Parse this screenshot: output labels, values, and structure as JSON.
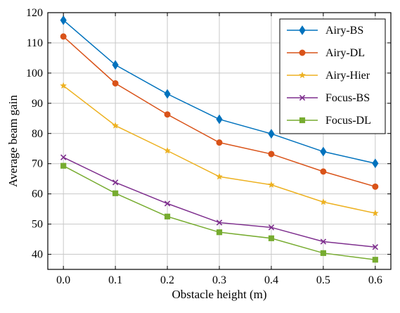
{
  "chart_data": {
    "type": "line",
    "title": "",
    "xlabel": "Obstacle height (m)",
    "ylabel": "Average beam gain",
    "x": [
      0.0,
      0.1,
      0.2,
      0.3,
      0.4,
      0.5,
      0.6
    ],
    "x_tick_labels": [
      "0.0",
      "0.1",
      "0.2",
      "0.3",
      "0.4",
      "0.5",
      "0.6"
    ],
    "xlim": [
      -0.03,
      0.63
    ],
    "ylim": [
      35,
      120
    ],
    "y_ticks": [
      40,
      50,
      60,
      70,
      80,
      90,
      100,
      110,
      120
    ],
    "y_tick_labels": [
      "40",
      "50",
      "60",
      "70",
      "80",
      "90",
      "100",
      "110",
      "120"
    ],
    "grid": true,
    "legend_position": "top-right",
    "series": [
      {
        "name": "Airy-BS",
        "color": "#0072BD",
        "marker": "diamond",
        "values": [
          117.5,
          102.7,
          93.1,
          84.7,
          79.9,
          74.0,
          70.1
        ]
      },
      {
        "name": "Airy-DL",
        "color": "#D95319",
        "marker": "circle",
        "values": [
          112.1,
          96.6,
          86.3,
          77.0,
          73.2,
          67.4,
          62.4
        ]
      },
      {
        "name": "Airy-Hier",
        "color": "#EDB120",
        "marker": "star",
        "values": [
          95.8,
          82.6,
          74.3,
          65.7,
          63.0,
          57.3,
          53.6
        ]
      },
      {
        "name": "Focus-BS",
        "color": "#7E2F8E",
        "marker": "x",
        "values": [
          72.1,
          63.8,
          56.8,
          50.5,
          48.9,
          44.2,
          42.4
        ]
      },
      {
        "name": "Focus-DL",
        "color": "#77AC30",
        "marker": "square",
        "values": [
          69.3,
          60.2,
          52.5,
          47.3,
          45.3,
          40.4,
          38.2
        ]
      }
    ]
  }
}
